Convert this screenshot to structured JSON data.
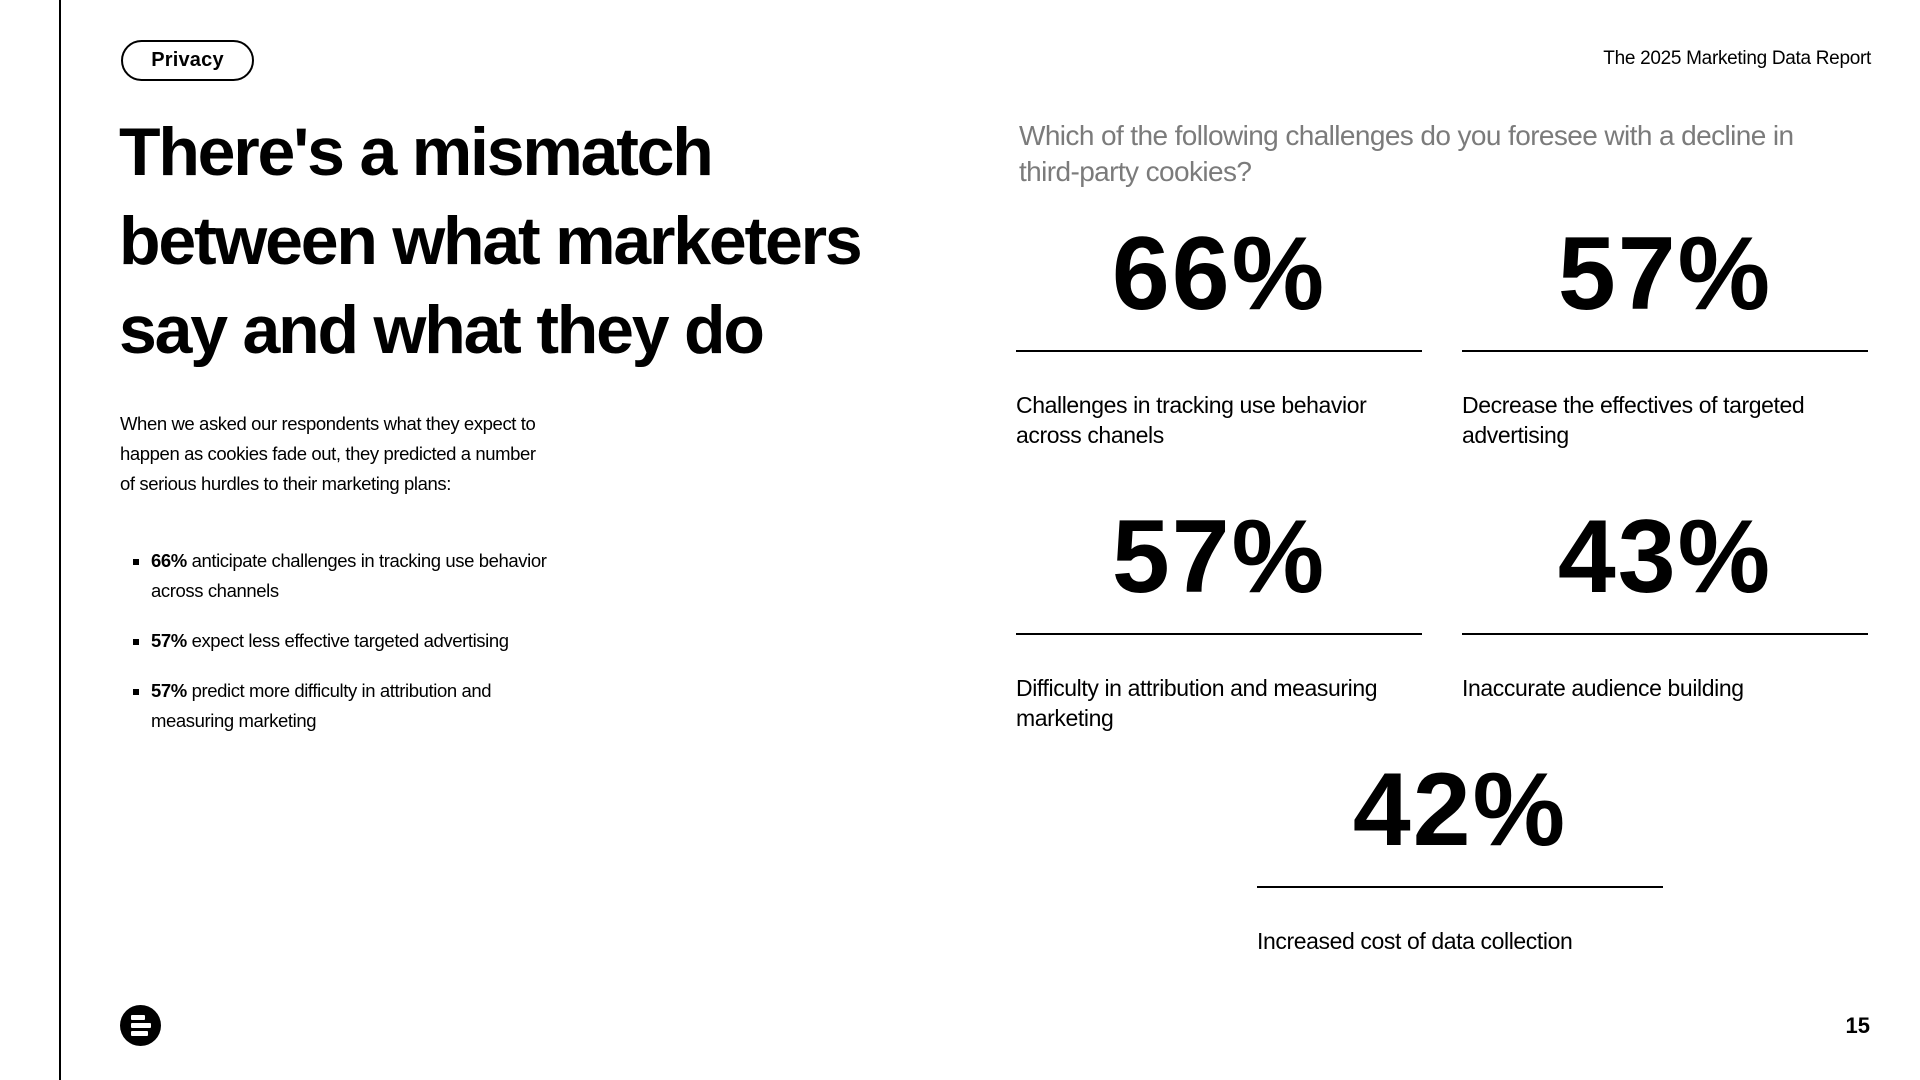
{
  "header": {
    "tag": "Privacy",
    "report_title": "The 2025 Marketing Data Report"
  },
  "headline": {
    "line1": "There's a mismatch",
    "line2": "between what marketers",
    "line3": "say and what they do"
  },
  "intro": "When we asked our respondents what they expect to happen as cookies fade out,  they predicted a number of serious hurdles to their marketing plans:",
  "bullets": [
    {
      "strong": "66%",
      "text": " anticipate challenges in tracking use behavior across channels"
    },
    {
      "strong": "57%",
      "text": " expect less effective targeted advertising"
    },
    {
      "strong": "57%",
      "text": " predict more difficulty in attribution and measuring marketing"
    }
  ],
  "question": "Which of the following challenges do you foresee with a decline in third-party cookies?",
  "stats": [
    {
      "value": "66%",
      "label": "Challenges in tracking use behavior across chanels"
    },
    {
      "value": "57%",
      "label": "Decrease the effectives of targeted advertising"
    },
    {
      "value": "57%",
      "label": "Difficulty in attribution and measuring marketing"
    },
    {
      "value": "43%",
      "label": "Inaccurate audience building"
    },
    {
      "value": "42%",
      "label": "Increased cost of data collection"
    }
  ],
  "footer": {
    "logo_icon": "brand-logo-icon",
    "page_number": "15"
  }
}
